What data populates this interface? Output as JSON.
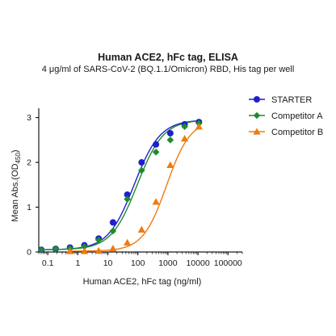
{
  "chart_data": {
    "type": "scatter",
    "title": "Human ACE2, hFc tag, ELISA",
    "subtitle": "4 μg/ml of SARS-CoV-2 (BQ.1.1/Omicron) RBD, His tag per well",
    "xlabel": "Human ACE2, hFc tag (ng/ml)",
    "ylabel_main": "Mean Abs.(OD",
    "ylabel_sub": "450",
    "ylabel_end": ")",
    "x_scale": "log",
    "xlim": [
      0.05,
      300000
    ],
    "ylim": [
      0,
      3.1
    ],
    "x_ticks": [
      0.1,
      1,
      10,
      100,
      1000,
      10000,
      100000
    ],
    "x_tick_labels": [
      "0.1",
      "1",
      "10",
      "100",
      "1000",
      "10000",
      "100000"
    ],
    "y_ticks": [
      0,
      1,
      2,
      3
    ],
    "y_tick_labels": [
      "0",
      "1",
      "2",
      "3"
    ],
    "legend_position": "right",
    "series": [
      {
        "name": "STARTER",
        "color": "#1f1fcf",
        "marker": "circle",
        "x": [
          0.061,
          0.183,
          0.549,
          1.65,
          4.94,
          14.8,
          44.4,
          133,
          400,
          1200,
          3600,
          10800
        ],
        "y": [
          0.05,
          0.07,
          0.1,
          0.15,
          0.3,
          0.66,
          1.28,
          2.0,
          2.4,
          2.65,
          2.85,
          2.9
        ],
        "curve": {
          "bottom": 0.05,
          "top": 2.95,
          "ec50": 75,
          "hill": 1.0
        }
      },
      {
        "name": "Competitor A",
        "color": "#1e8b2e",
        "marker": "diamond",
        "x": [
          0.061,
          0.183,
          0.549,
          1.65,
          4.94,
          14.8,
          44.4,
          133,
          400,
          1200,
          3600,
          10800
        ],
        "y": [
          0.05,
          0.07,
          0.08,
          0.12,
          0.27,
          0.47,
          1.18,
          1.82,
          2.23,
          2.5,
          2.8,
          2.87
        ],
        "curve": {
          "bottom": 0.05,
          "top": 2.95,
          "ec50": 95,
          "hill": 1.0
        }
      },
      {
        "name": "Competitor B",
        "color": "#f07a10",
        "marker": "triangle",
        "x": [
          0.549,
          1.65,
          4.94,
          14.8,
          44.4,
          133,
          400,
          1200,
          3600,
          10800
        ],
        "y": [
          0.02,
          0.02,
          0.03,
          0.08,
          0.21,
          0.5,
          1.12,
          1.94,
          2.53,
          2.8
        ],
        "curve": {
          "bottom": 0.02,
          "top": 2.95,
          "ec50": 900,
          "hill": 1.1
        }
      }
    ]
  }
}
